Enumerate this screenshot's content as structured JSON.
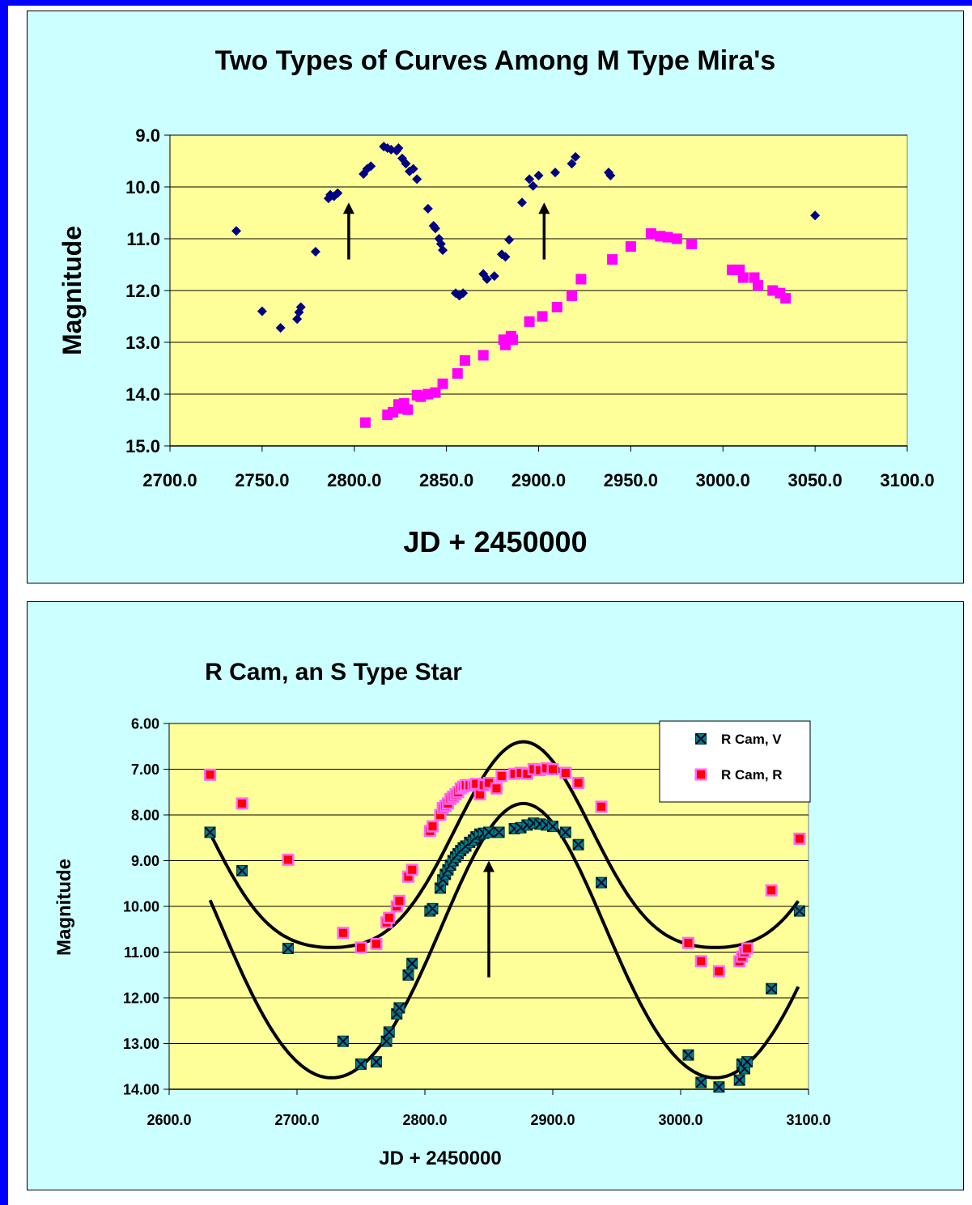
{
  "colors": {
    "frame": "#0000ff",
    "panel_bg": "#ccffff",
    "plot_bg": "#ffff99",
    "navy": "#000080",
    "magenta": "#ff00ff",
    "red_marker": "#ff0000",
    "pink_marker": "#ff66ff",
    "teal_marker": "#006666"
  },
  "chart_data": [
    {
      "type": "scatter",
      "title": "Two Types of Curves Among M Type Mira's",
      "xlabel": "JD + 2450000",
      "ylabel": "Magnitude",
      "xlim": [
        2700,
        3100
      ],
      "ylim": [
        15,
        9
      ],
      "y_inverted": true,
      "xticks": [
        2700,
        2750,
        2800,
        2850,
        2900,
        2950,
        3000,
        3050,
        3100
      ],
      "xtick_labels": [
        "2700.0",
        "2750.0",
        "2800.0",
        "2850.0",
        "2900.0",
        "2950.0",
        "3000.0",
        "3050.0",
        "3100.0"
      ],
      "yticks": [
        9,
        10,
        11,
        12,
        13,
        14,
        15
      ],
      "ytick_labels": [
        "9.0",
        "10.0",
        "11.0",
        "12.0",
        "13.0",
        "14.0",
        "15.0"
      ],
      "grid": "horizontal",
      "legend": "none",
      "annotations": [
        {
          "type": "arrow",
          "x": 2797,
          "y_from": 11.4,
          "y_to": 10.3
        },
        {
          "type": "arrow",
          "x": 2903,
          "y_from": 11.4,
          "y_to": 10.3
        }
      ],
      "series": [
        {
          "marker": "diamond",
          "color": "#000080",
          "points": [
            [
              2736,
              10.85
            ],
            [
              2750,
              12.4
            ],
            [
              2760,
              12.72
            ],
            [
              2769,
              12.55
            ],
            [
              2770,
              12.42
            ],
            [
              2771,
              12.32
            ],
            [
              2779,
              11.25
            ],
            [
              2786,
              10.22
            ],
            [
              2787,
              10.15
            ],
            [
              2789,
              10.18
            ],
            [
              2791,
              10.12
            ],
            [
              2805,
              9.75
            ],
            [
              2807,
              9.65
            ],
            [
              2809,
              9.6
            ],
            [
              2816,
              9.22
            ],
            [
              2818,
              9.25
            ],
            [
              2820,
              9.28
            ],
            [
              2823,
              9.3
            ],
            [
              2824,
              9.25
            ],
            [
              2826,
              9.45
            ],
            [
              2828,
              9.55
            ],
            [
              2830,
              9.7
            ],
            [
              2832,
              9.65
            ],
            [
              2834,
              9.85
            ],
            [
              2840,
              10.42
            ],
            [
              2843,
              10.75
            ],
            [
              2844,
              10.8
            ],
            [
              2846,
              11.0
            ],
            [
              2847,
              11.1
            ],
            [
              2848,
              11.22
            ],
            [
              2855,
              12.05
            ],
            [
              2857,
              12.1
            ],
            [
              2859,
              12.05
            ],
            [
              2870,
              11.68
            ],
            [
              2872,
              11.78
            ],
            [
              2876,
              11.72
            ],
            [
              2880,
              11.3
            ],
            [
              2882,
              11.35
            ],
            [
              2884,
              11.02
            ],
            [
              2891,
              10.3
            ],
            [
              2895,
              9.85
            ],
            [
              2897,
              9.98
            ],
            [
              2900,
              9.78
            ],
            [
              2909,
              9.72
            ],
            [
              2918,
              9.55
            ],
            [
              2920,
              9.42
            ],
            [
              2938,
              9.72
            ],
            [
              2939,
              9.78
            ],
            [
              3050,
              10.55
            ]
          ]
        },
        {
          "marker": "square",
          "color": "#ff00ff",
          "points": [
            [
              2806,
              14.55
            ],
            [
              2818,
              14.4
            ],
            [
              2821,
              14.35
            ],
            [
              2824,
              14.2
            ],
            [
              2825,
              14.28
            ],
            [
              2827,
              14.18
            ],
            [
              2829,
              14.3
            ],
            [
              2834,
              14.02
            ],
            [
              2836,
              14.05
            ],
            [
              2840,
              14.0
            ],
            [
              2844,
              13.97
            ],
            [
              2848,
              13.8
            ],
            [
              2856,
              13.6
            ],
            [
              2860,
              13.35
            ],
            [
              2870,
              13.25
            ],
            [
              2881,
              12.95
            ],
            [
              2882,
              13.05
            ],
            [
              2885,
              12.88
            ],
            [
              2886,
              12.95
            ],
            [
              2895,
              12.6
            ],
            [
              2902,
              12.5
            ],
            [
              2910,
              12.32
            ],
            [
              2918,
              12.1
            ],
            [
              2923,
              11.78
            ],
            [
              2940,
              11.4
            ],
            [
              2950,
              11.15
            ],
            [
              2961,
              10.9
            ],
            [
              2966,
              10.95
            ],
            [
              2970,
              10.97
            ],
            [
              2975,
              11.0
            ],
            [
              2983,
              11.1
            ],
            [
              3005,
              11.6
            ],
            [
              3009,
              11.6
            ],
            [
              3011,
              11.75
            ],
            [
              3017,
              11.75
            ],
            [
              3019,
              11.9
            ],
            [
              3027,
              12.0
            ],
            [
              3031,
              12.05
            ],
            [
              3034,
              12.15
            ]
          ]
        }
      ]
    },
    {
      "type": "scatter",
      "title": "R Cam, an S Type Star",
      "xlabel": "JD + 2450000",
      "ylabel": "Magnitude",
      "xlim": [
        2600,
        3100
      ],
      "ylim": [
        14,
        6
      ],
      "y_inverted": true,
      "xticks": [
        2600,
        2700,
        2800,
        2900,
        3000,
        3100
      ],
      "xtick_labels": [
        "2600.0",
        "2700.0",
        "2800.0",
        "2900.0",
        "3000.0",
        "3100.0"
      ],
      "yticks": [
        6,
        7,
        8,
        9,
        10,
        11,
        12,
        13,
        14
      ],
      "ytick_labels": [
        "6.00",
        "7.00",
        "8.00",
        "9.00",
        "10.00",
        "11.00",
        "12.00",
        "13.00",
        "14.00"
      ],
      "grid": "horizontal",
      "legend": "top-right",
      "legend_entries": [
        "R Cam, V",
        "R Cam, R"
      ],
      "annotations": [
        {
          "type": "arrow",
          "x": 2850,
          "y_from": 11.55,
          "y_to": 9.0
        }
      ],
      "series": [
        {
          "name": "R Cam, V",
          "marker": "x-square",
          "color": "#006666",
          "points": [
            [
              2632,
              8.38
            ],
            [
              2657,
              9.22
            ],
            [
              2693,
              10.92
            ],
            [
              2736,
              12.95
            ],
            [
              2750,
              13.45
            ],
            [
              2762,
              13.4
            ],
            [
              2770,
              12.95
            ],
            [
              2772,
              12.75
            ],
            [
              2778,
              12.35
            ],
            [
              2780,
              12.22
            ],
            [
              2787,
              11.5
            ],
            [
              2790,
              11.25
            ],
            [
              2804,
              10.1
            ],
            [
              2806,
              10.05
            ],
            [
              2812,
              9.6
            ],
            [
              2814,
              9.42
            ],
            [
              2816,
              9.3
            ],
            [
              2818,
              9.2
            ],
            [
              2820,
              9.1
            ],
            [
              2822,
              9.0
            ],
            [
              2824,
              8.92
            ],
            [
              2826,
              8.85
            ],
            [
              2828,
              8.78
            ],
            [
              2830,
              8.72
            ],
            [
              2832,
              8.68
            ],
            [
              2835,
              8.6
            ],
            [
              2838,
              8.55
            ],
            [
              2840,
              8.48
            ],
            [
              2843,
              8.42
            ],
            [
              2846,
              8.4
            ],
            [
              2850,
              8.38
            ],
            [
              2858,
              8.38
            ],
            [
              2870,
              8.3
            ],
            [
              2875,
              8.28
            ],
            [
              2880,
              8.22
            ],
            [
              2885,
              8.18
            ],
            [
              2890,
              8.2
            ],
            [
              2895,
              8.22
            ],
            [
              2900,
              8.25
            ],
            [
              2910,
              8.38
            ],
            [
              2920,
              8.65
            ],
            [
              2938,
              9.48
            ],
            [
              3006,
              13.25
            ],
            [
              3016,
              13.85
            ],
            [
              3030,
              13.95
            ],
            [
              3046,
              13.8
            ],
            [
              3048,
              13.45
            ],
            [
              3050,
              13.55
            ],
            [
              3052,
              13.4
            ],
            [
              3071,
              11.8
            ],
            [
              3093,
              10.1
            ]
          ]
        },
        {
          "name": "R Cam, R",
          "marker": "square",
          "color": "#ff0000",
          "points": [
            [
              2632,
              7.12
            ],
            [
              2657,
              7.75
            ],
            [
              2693,
              8.98
            ],
            [
              2736,
              10.58
            ],
            [
              2750,
              10.9
            ],
            [
              2762,
              10.82
            ],
            [
              2770,
              10.35
            ],
            [
              2772,
              10.25
            ],
            [
              2778,
              10.0
            ],
            [
              2780,
              9.88
            ],
            [
              2787,
              9.35
            ],
            [
              2790,
              9.2
            ],
            [
              2804,
              8.35
            ],
            [
              2806,
              8.25
            ],
            [
              2812,
              8.0
            ],
            [
              2814,
              7.85
            ],
            [
              2816,
              7.8
            ],
            [
              2818,
              7.75
            ],
            [
              2820,
              7.65
            ],
            [
              2822,
              7.6
            ],
            [
              2824,
              7.55
            ],
            [
              2826,
              7.5
            ],
            [
              2828,
              7.42
            ],
            [
              2830,
              7.38
            ],
            [
              2832,
              7.35
            ],
            [
              2835,
              7.35
            ],
            [
              2838,
              7.35
            ],
            [
              2840,
              7.32
            ],
            [
              2843,
              7.55
            ],
            [
              2846,
              7.35
            ],
            [
              2850,
              7.3
            ],
            [
              2856,
              7.42
            ],
            [
              2860,
              7.15
            ],
            [
              2870,
              7.1
            ],
            [
              2875,
              7.08
            ],
            [
              2880,
              7.1
            ],
            [
              2885,
              7.0
            ],
            [
              2890,
              7.02
            ],
            [
              2895,
              6.98
            ],
            [
              2900,
              7.0
            ],
            [
              2910,
              7.08
            ],
            [
              2920,
              7.3
            ],
            [
              2938,
              7.82
            ],
            [
              3006,
              10.8
            ],
            [
              3016,
              11.2
            ],
            [
              3030,
              11.42
            ],
            [
              3046,
              11.2
            ],
            [
              3048,
              11.1
            ],
            [
              3050,
              11.0
            ],
            [
              3052,
              10.92
            ],
            [
              3071,
              9.65
            ],
            [
              3093,
              8.52
            ]
          ]
        }
      ],
      "fit_curves": [
        {
          "for": "R Cam, R",
          "color": "#000000"
        },
        {
          "for": "R Cam, V",
          "color": "#000000"
        }
      ]
    }
  ]
}
